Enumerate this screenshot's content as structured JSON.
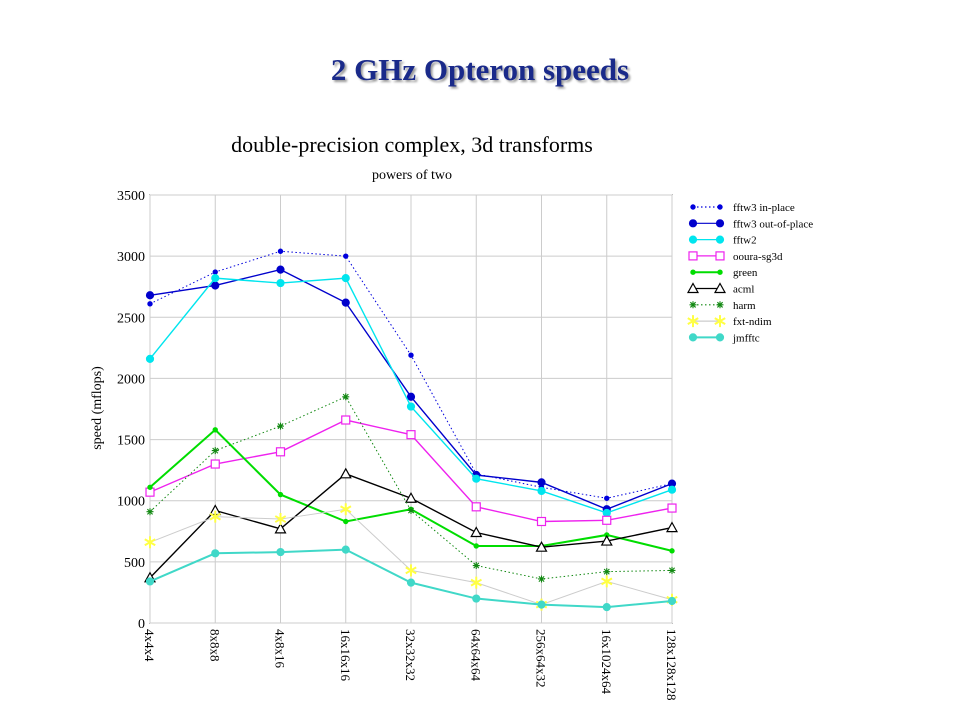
{
  "slide": {
    "title": "2 GHz Opteron speeds"
  },
  "chart_data": {
    "type": "line",
    "title": "double-precision complex, 3d transforms",
    "subtitle": "powers of two",
    "xlabel": "",
    "ylabel": "speed (mflops)",
    "ylim": [
      0,
      3500
    ],
    "yticks": [
      0,
      500,
      1000,
      1500,
      2000,
      2500,
      3000,
      3500
    ],
    "grid": true,
    "legend": "right",
    "categories": [
      "4x4x4",
      "8x8x8",
      "4x8x16",
      "16x16x16",
      "32x32x32",
      "64x64x64",
      "256x64x32",
      "16x1024x64",
      "128x128x128"
    ],
    "series": [
      {
        "name": "fftw3 in-place",
        "color": "#0000dd",
        "marker": "dot-small",
        "dash": "dotted",
        "values": [
          2610,
          2870,
          3040,
          3000,
          2190,
          1220,
          1110,
          1020,
          1140
        ]
      },
      {
        "name": "fftw3 out-of-place",
        "color": "#0000cc",
        "marker": "dot",
        "dash": "solid",
        "values": [
          2680,
          2760,
          2890,
          2620,
          1850,
          1210,
          1150,
          930,
          1140
        ]
      },
      {
        "name": "fftw2",
        "color": "#00e5ee",
        "marker": "dot",
        "dash": "solid",
        "values": [
          2160,
          2820,
          2780,
          2820,
          1770,
          1180,
          1080,
          900,
          1090
        ]
      },
      {
        "name": "ooura-sg3d",
        "color": "#ee22ee",
        "marker": "square",
        "dash": "solid",
        "values": [
          1070,
          1300,
          1400,
          1660,
          1540,
          950,
          830,
          840,
          940
        ]
      },
      {
        "name": "green",
        "color": "#00dd00",
        "marker": "dot-small",
        "dash": "solid",
        "values": [
          1110,
          1580,
          1050,
          830,
          930,
          630,
          630,
          720,
          590
        ]
      },
      {
        "name": "acml",
        "color": "#000000",
        "marker": "triangle",
        "dash": "solid",
        "values": [
          370,
          920,
          770,
          1220,
          1020,
          740,
          620,
          670,
          780
        ]
      },
      {
        "name": "harm",
        "color": "#118811",
        "marker": "star",
        "dash": "dotted",
        "values": [
          910,
          1410,
          1610,
          1850,
          920,
          470,
          360,
          420,
          430
        ]
      },
      {
        "name": "fxt-ndim",
        "color": "#ffff44",
        "marker": "asterisk",
        "dash": "solid",
        "values": [
          660,
          870,
          850,
          930,
          430,
          330,
          150,
          340,
          190
        ]
      },
      {
        "name": "jmfftc",
        "color": "#40d8c8",
        "marker": "dot",
        "dash": "solid",
        "values": [
          340,
          570,
          580,
          600,
          330,
          200,
          150,
          130,
          180
        ]
      }
    ]
  }
}
